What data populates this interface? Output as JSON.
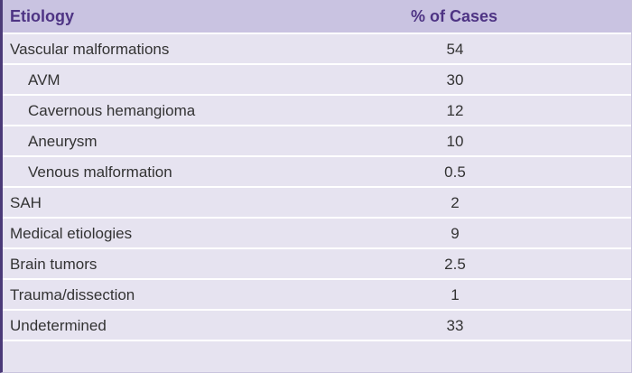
{
  "table": {
    "header": [
      "Etiology",
      "% of Cases"
    ],
    "rows": [
      {
        "label": "Vascular malformations",
        "value": 54,
        "level": 0
      },
      {
        "label": "AVM",
        "value": 30,
        "level": 1
      },
      {
        "label": "Cavernous hemangioma",
        "value": 12,
        "level": 1
      },
      {
        "label": "Aneurysm",
        "value": 10,
        "level": 1
      },
      {
        "label": "Venous malformation",
        "value": 0.5,
        "level": 1
      },
      {
        "label": "SAH",
        "value": 2,
        "level": 0
      },
      {
        "label": "Medical etiologies",
        "value": 9,
        "level": 0
      },
      {
        "label": "Brain tumors",
        "value": 2.5,
        "level": 0
      },
      {
        "label": "Trauma/dissection",
        "value": 1,
        "level": 0
      },
      {
        "label": "Undetermined",
        "value": 33,
        "level": 0
      }
    ]
  }
}
